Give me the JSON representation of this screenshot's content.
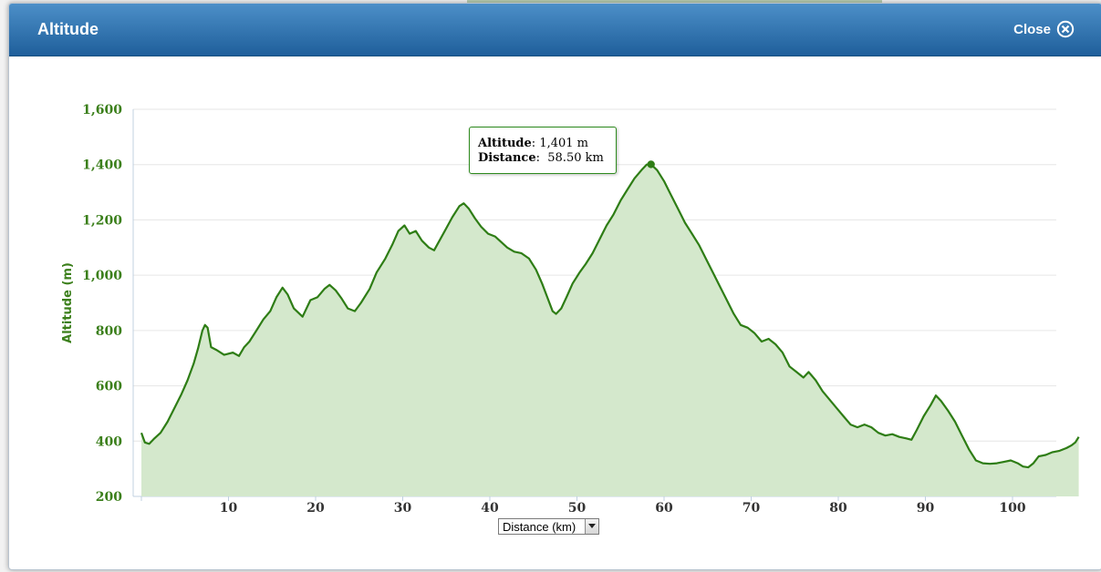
{
  "dialog": {
    "title": "Altitude",
    "close_label": "Close"
  },
  "colors": {
    "header_top": "#4c8fc8",
    "header_bottom": "#1f5f9b",
    "line": "#2e7d15",
    "fill": "#d4e8cc",
    "axis_text": "#3b7f1b"
  },
  "icons": {
    "close": "close-icon"
  },
  "tooltip": {
    "altitude_label": "Altitude",
    "altitude_value": "1,401 m",
    "distance_label": "Distance",
    "distance_value": "58.50 km"
  },
  "x_selector": {
    "selected": "Distance (km)"
  },
  "chart_data": {
    "type": "area",
    "title": "",
    "xlabel": "",
    "ylabel": "Altitude (m)",
    "ylim": [
      200,
      1600
    ],
    "xlim": [
      0,
      105
    ],
    "y_ticks": [
      "200",
      "400",
      "600",
      "800",
      "1,000",
      "1,200",
      "1,400",
      "1,600"
    ],
    "y_tick_values": [
      200,
      400,
      600,
      800,
      1000,
      1200,
      1400,
      1600
    ],
    "x_ticks": [
      "10",
      "20",
      "30",
      "40",
      "50",
      "60",
      "70",
      "80",
      "90",
      "100"
    ],
    "x_tick_values": [
      10,
      20,
      30,
      40,
      50,
      60,
      70,
      80,
      90,
      100
    ],
    "grid": true,
    "highlight": {
      "x": 58.5,
      "y": 1401
    },
    "series": [
      {
        "values": [
          [
            0,
            430
          ],
          [
            0.4,
            395
          ],
          [
            0.9,
            390
          ],
          [
            1.5,
            410
          ],
          [
            2.2,
            430
          ],
          [
            3,
            470
          ],
          [
            3.8,
            520
          ],
          [
            4.6,
            570
          ],
          [
            5.3,
            620
          ],
          [
            6,
            680
          ],
          [
            6.5,
            735
          ],
          [
            7,
            800
          ],
          [
            7.3,
            820
          ],
          [
            7.6,
            810
          ],
          [
            8,
            740
          ],
          [
            8.6,
            730
          ],
          [
            9.5,
            712
          ],
          [
            10.5,
            720
          ],
          [
            11.2,
            708
          ],
          [
            11.8,
            740
          ],
          [
            12.4,
            760
          ],
          [
            13.2,
            800
          ],
          [
            14,
            840
          ],
          [
            14.8,
            870
          ],
          [
            15.5,
            920
          ],
          [
            16.2,
            955
          ],
          [
            16.8,
            930
          ],
          [
            17.5,
            880
          ],
          [
            18.5,
            850
          ],
          [
            19.4,
            910
          ],
          [
            20.2,
            920
          ],
          [
            21,
            950
          ],
          [
            21.6,
            965
          ],
          [
            22.3,
            945
          ],
          [
            23,
            915
          ],
          [
            23.7,
            880
          ],
          [
            24.5,
            870
          ],
          [
            25.2,
            900
          ],
          [
            26.2,
            950
          ],
          [
            27,
            1010
          ],
          [
            28,
            1060
          ],
          [
            28.8,
            1110
          ],
          [
            29.5,
            1160
          ],
          [
            30.2,
            1180
          ],
          [
            30.8,
            1150
          ],
          [
            31.5,
            1160
          ],
          [
            32.2,
            1125
          ],
          [
            33,
            1100
          ],
          [
            33.6,
            1090
          ],
          [
            34.3,
            1130
          ],
          [
            35,
            1170
          ],
          [
            35.7,
            1210
          ],
          [
            36.5,
            1250
          ],
          [
            37,
            1260
          ],
          [
            37.6,
            1240
          ],
          [
            38.3,
            1205
          ],
          [
            39,
            1175
          ],
          [
            39.8,
            1150
          ],
          [
            40.6,
            1140
          ],
          [
            41.3,
            1120
          ],
          [
            42,
            1100
          ],
          [
            42.8,
            1085
          ],
          [
            43.6,
            1080
          ],
          [
            44.5,
            1060
          ],
          [
            45.3,
            1020
          ],
          [
            46,
            970
          ],
          [
            46.6,
            920
          ],
          [
            47.2,
            870
          ],
          [
            47.6,
            860
          ],
          [
            48.2,
            880
          ],
          [
            48.8,
            920
          ],
          [
            49.5,
            970
          ],
          [
            50.3,
            1010
          ],
          [
            51,
            1040
          ],
          [
            51.8,
            1080
          ],
          [
            52.6,
            1130
          ],
          [
            53.4,
            1180
          ],
          [
            54.2,
            1220
          ],
          [
            55,
            1270
          ],
          [
            55.8,
            1310
          ],
          [
            56.6,
            1350
          ],
          [
            57.4,
            1380
          ],
          [
            58,
            1400
          ],
          [
            58.5,
            1401
          ],
          [
            59.2,
            1380
          ],
          [
            60,
            1340
          ],
          [
            60.8,
            1290
          ],
          [
            61.6,
            1240
          ],
          [
            62.4,
            1190
          ],
          [
            63.2,
            1150
          ],
          [
            64,
            1110
          ],
          [
            64.8,
            1060
          ],
          [
            65.6,
            1010
          ],
          [
            66.4,
            960
          ],
          [
            67.2,
            910
          ],
          [
            68,
            860
          ],
          [
            68.8,
            820
          ],
          [
            69.6,
            810
          ],
          [
            70.4,
            790
          ],
          [
            71.2,
            760
          ],
          [
            72,
            770
          ],
          [
            72.8,
            750
          ],
          [
            73.6,
            720
          ],
          [
            74.4,
            670
          ],
          [
            75.2,
            650
          ],
          [
            76,
            630
          ],
          [
            76.6,
            650
          ],
          [
            77.4,
            620
          ],
          [
            78.2,
            580
          ],
          [
            79,
            550
          ],
          [
            79.8,
            520
          ],
          [
            80.6,
            490
          ],
          [
            81.4,
            460
          ],
          [
            82.2,
            450
          ],
          [
            83,
            460
          ],
          [
            83.8,
            450
          ],
          [
            84.6,
            430
          ],
          [
            85.4,
            420
          ],
          [
            86.2,
            425
          ],
          [
            87,
            415
          ],
          [
            87.8,
            410
          ],
          [
            88.4,
            405
          ],
          [
            89,
            440
          ],
          [
            89.8,
            490
          ],
          [
            90.6,
            530
          ],
          [
            91.2,
            565
          ],
          [
            91.8,
            545
          ],
          [
            92.6,
            510
          ],
          [
            93.4,
            470
          ],
          [
            94.2,
            420
          ],
          [
            95,
            370
          ],
          [
            95.8,
            330
          ],
          [
            96.6,
            320
          ],
          [
            97.4,
            318
          ],
          [
            98.2,
            320
          ],
          [
            99,
            325
          ],
          [
            99.8,
            330
          ],
          [
            100.6,
            320
          ],
          [
            101.2,
            308
          ],
          [
            101.8,
            305
          ],
          [
            102.4,
            320
          ],
          [
            103,
            345
          ],
          [
            103.8,
            350
          ],
          [
            104.6,
            360
          ],
          [
            105.4,
            365
          ],
          [
            106.2,
            375
          ],
          [
            106.8,
            385
          ],
          [
            107.2,
            395
          ],
          [
            107.6,
            415
          ]
        ]
      }
    ]
  }
}
